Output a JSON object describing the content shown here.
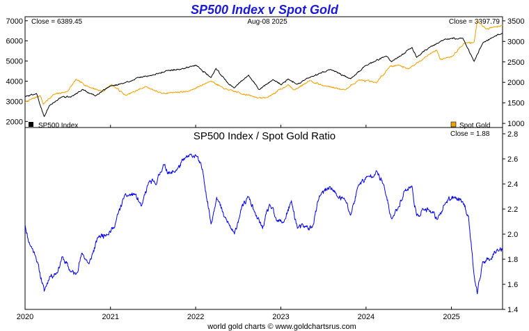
{
  "title": "SP500 Index v Spot Gold",
  "footer": "world gold charts © www.goldchartsrus.com",
  "colors": {
    "sp500": "#000000",
    "gold": "#f0a000",
    "ratio": "#0000ee",
    "title": "#1a1ad6"
  },
  "chart_data": [
    {
      "type": "line",
      "header_left": "Close = 6389.45",
      "header_center": "Aug-08  2025",
      "header_right": "Close = 3397.79",
      "x_ticks": [
        "2020",
        "2021",
        "2022",
        "2023",
        "2024",
        "2025"
      ],
      "xlim": [
        "2020-01-01",
        "2025-08-08"
      ],
      "left_axis": {
        "ticks": [
          "2000",
          "3000",
          "4000",
          "5000",
          "6000",
          "7000"
        ],
        "ylim": [
          1700,
          7200
        ]
      },
      "right_axis": {
        "ticks": [
          "1000",
          "1500",
          "2000",
          "2500",
          "3000",
          "3500"
        ],
        "ylim": [
          900,
          3600
        ]
      },
      "grid": false,
      "legend": [
        {
          "name": "SP500 Index",
          "color": "#000000",
          "position": "bottom-left"
        },
        {
          "name": "Spot Gold",
          "color": "#f0a000",
          "position": "bottom-right"
        }
      ],
      "series": [
        {
          "name": "SP500 Index",
          "axis": "left",
          "color": "#000000",
          "x": [
            "2020-01-01",
            "2020-02-19",
            "2020-03-23",
            "2020-04-15",
            "2020-06-08",
            "2020-07-15",
            "2020-09-02",
            "2020-10-30",
            "2020-12-31",
            "2021-03-01",
            "2021-05-01",
            "2021-07-01",
            "2021-09-01",
            "2021-11-01",
            "2022-01-03",
            "2022-03-08",
            "2022-03-29",
            "2022-05-20",
            "2022-06-16",
            "2022-08-16",
            "2022-09-30",
            "2022-11-30",
            "2023-01-03",
            "2023-02-01",
            "2023-03-13",
            "2023-05-01",
            "2023-07-31",
            "2023-10-27",
            "2023-12-29",
            "2024-03-28",
            "2024-04-19",
            "2024-07-16",
            "2024-08-05",
            "2024-10-01",
            "2024-12-06",
            "2025-02-19",
            "2025-04-08",
            "2025-05-15",
            "2025-07-01",
            "2025-08-08"
          ],
          "values": [
            3230,
            3386,
            2237,
            2800,
            3230,
            3210,
            3580,
            3270,
            3756,
            3900,
            4180,
            4300,
            4530,
            4600,
            4796,
            4170,
            4630,
            3900,
            3666,
            4305,
            3585,
            4080,
            3824,
            4120,
            3855,
            4170,
            4588,
            4117,
            4770,
            5254,
            4967,
            5667,
            5186,
            5700,
            6090,
            6144,
            4982,
            5890,
            6200,
            6389
          ]
        },
        {
          "name": "Spot Gold",
          "axis": "right",
          "color": "#f0a000",
          "x": [
            "2020-01-01",
            "2020-03-06",
            "2020-03-19",
            "2020-05-01",
            "2020-07-01",
            "2020-08-06",
            "2020-09-30",
            "2020-11-30",
            "2021-01-05",
            "2021-03-08",
            "2021-06-01",
            "2021-08-09",
            "2021-10-01",
            "2021-12-01",
            "2022-03-08",
            "2022-05-01",
            "2022-09-28",
            "2022-11-03",
            "2023-02-01",
            "2023-02-28",
            "2023-05-04",
            "2023-07-01",
            "2023-10-05",
            "2023-12-01",
            "2024-02-14",
            "2024-04-12",
            "2024-05-20",
            "2024-07-01",
            "2024-09-26",
            "2024-10-30",
            "2024-11-14",
            "2025-01-01",
            "2025-02-24",
            "2025-04-08",
            "2025-04-22",
            "2025-06-01",
            "2025-07-01",
            "2025-08-08"
          ],
          "values": [
            1520,
            1680,
            1470,
            1700,
            1780,
            2067,
            1890,
            1780,
            1950,
            1680,
            1900,
            1730,
            1760,
            1780,
            2040,
            1850,
            1620,
            1630,
            1940,
            1810,
            2050,
            1920,
            1820,
            2060,
            1990,
            2390,
            2420,
            2330,
            2680,
            2790,
            2560,
            2620,
            2950,
            2980,
            3500,
            3300,
            3350,
            3398
          ]
        }
      ]
    },
    {
      "type": "line",
      "title": "SP500 Index  /  Spot Gold Ratio",
      "header_right": "Close = 1.88",
      "x_ticks": [
        "2020",
        "2021",
        "2022",
        "2023",
        "2024",
        "2025"
      ],
      "xlim": [
        "2020-01-01",
        "2025-08-08"
      ],
      "y_ticks": [
        "1.4",
        "1.6",
        "1.8",
        "2.0",
        "2.2",
        "2.4",
        "2.6",
        "2.8"
      ],
      "ylim": [
        1.4,
        2.85
      ],
      "grid": false,
      "series": [
        {
          "name": "",
          "color": "#0000ee",
          "x": [
            "2020-01-01",
            "2020-01-15",
            "2020-02-15",
            "2020-03-23",
            "2020-04-15",
            "2020-05-20",
            "2020-06-08",
            "2020-07-15",
            "2020-08-06",
            "2020-09-02",
            "2020-10-01",
            "2020-11-10",
            "2020-12-15",
            "2021-01-15",
            "2021-03-01",
            "2021-04-15",
            "2021-05-15",
            "2021-06-15",
            "2021-07-15",
            "2021-08-15",
            "2021-09-15",
            "2021-10-15",
            "2021-11-15",
            "2021-12-15",
            "2022-01-03",
            "2022-02-01",
            "2022-03-08",
            "2022-04-01",
            "2022-05-01",
            "2022-06-16",
            "2022-07-15",
            "2022-08-16",
            "2022-09-15",
            "2022-10-15",
            "2022-11-15",
            "2022-12-15",
            "2023-01-15",
            "2023-02-15",
            "2023-03-13",
            "2023-04-15",
            "2023-05-15",
            "2023-06-15",
            "2023-07-31",
            "2023-08-31",
            "2023-10-05",
            "2023-10-27",
            "2023-12-01",
            "2024-01-15",
            "2024-02-14",
            "2024-03-15",
            "2024-04-19",
            "2024-05-15",
            "2024-06-15",
            "2024-07-16",
            "2024-08-05",
            "2024-09-01",
            "2024-10-01",
            "2024-11-01",
            "2024-12-06",
            "2025-01-15",
            "2025-02-19",
            "2025-03-15",
            "2025-04-08",
            "2025-04-22",
            "2025-05-15",
            "2025-06-15",
            "2025-07-15",
            "2025-08-08"
          ],
          "values": [
            2.08,
            1.95,
            1.83,
            1.55,
            1.66,
            1.7,
            1.82,
            1.7,
            1.68,
            1.85,
            1.76,
            1.98,
            2.0,
            2.05,
            2.3,
            2.32,
            2.22,
            2.42,
            2.4,
            2.55,
            2.48,
            2.52,
            2.6,
            2.63,
            2.63,
            2.5,
            2.08,
            2.3,
            2.15,
            2.0,
            2.2,
            2.3,
            2.15,
            2.05,
            2.24,
            2.1,
            2.1,
            2.26,
            2.05,
            2.06,
            2.05,
            2.3,
            2.38,
            2.3,
            2.27,
            2.15,
            2.4,
            2.46,
            2.5,
            2.4,
            2.12,
            2.2,
            2.35,
            2.38,
            2.14,
            2.2,
            2.18,
            2.12,
            2.25,
            2.3,
            2.26,
            2.14,
            1.67,
            1.52,
            1.78,
            1.8,
            1.88,
            1.88
          ]
        }
      ]
    }
  ]
}
